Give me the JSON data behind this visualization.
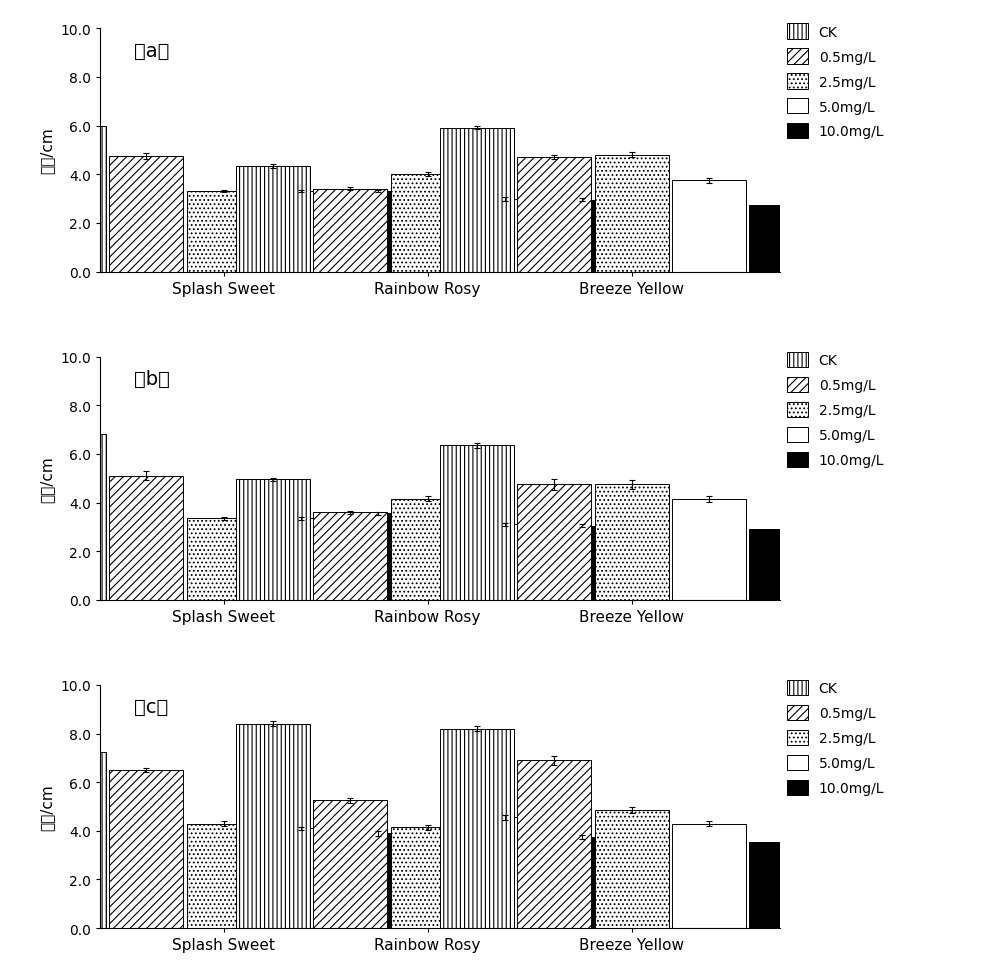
{
  "subplot_labels": [
    "（a）",
    "（b）",
    "（c）"
  ],
  "ylabel": "根长/cm",
  "groups": [
    "Splash Sweet",
    "Rainbow Rosy",
    "Breeze Yellow"
  ],
  "legend_labels": [
    "CK",
    "0.5mg/L",
    "2.5mg/L",
    "5.0mg/L",
    "10.0mg/L"
  ],
  "ylim": [
    0.0,
    10.0
  ],
  "yticks": [
    0.0,
    2.0,
    4.0,
    6.0,
    8.0,
    10.0
  ],
  "data": {
    "a": {
      "means": [
        [
          6.0,
          4.75,
          3.3,
          3.3,
          3.3
        ],
        [
          4.35,
          3.4,
          4.0,
          3.0,
          2.95
        ],
        [
          5.92,
          4.72,
          4.8,
          3.75,
          2.75
        ]
      ],
      "errors": [
        [
          0.05,
          0.12,
          0.05,
          0.05,
          0.04
        ],
        [
          0.08,
          0.06,
          0.08,
          0.08,
          0.06
        ],
        [
          0.05,
          0.08,
          0.1,
          0.1,
          0.07
        ]
      ]
    },
    "b": {
      "means": [
        [
          6.8,
          5.1,
          3.35,
          3.35,
          3.55
        ],
        [
          4.95,
          3.6,
          4.15,
          3.1,
          3.05
        ],
        [
          6.35,
          4.75,
          4.75,
          4.15,
          2.9
        ]
      ],
      "errors": [
        [
          0.07,
          0.18,
          0.06,
          0.06,
          0.07
        ],
        [
          0.07,
          0.06,
          0.1,
          0.06,
          0.06
        ],
        [
          0.1,
          0.22,
          0.18,
          0.12,
          0.07
        ]
      ]
    },
    "c": {
      "means": [
        [
          7.25,
          6.5,
          4.3,
          4.1,
          3.9
        ],
        [
          8.4,
          5.25,
          4.15,
          4.55,
          3.75
        ],
        [
          8.2,
          6.9,
          4.85,
          4.3,
          3.55
        ]
      ],
      "errors": [
        [
          0.1,
          0.1,
          0.1,
          0.07,
          0.1
        ],
        [
          0.1,
          0.1,
          0.1,
          0.12,
          0.08
        ],
        [
          0.1,
          0.18,
          0.12,
          0.1,
          0.07
        ]
      ]
    }
  },
  "hatch_styles": [
    "||||",
    "////",
    "....",
    "",
    ""
  ],
  "face_colors": [
    "#ffffff",
    "#ffffff",
    "#ffffff",
    "#ffffff",
    "#000000"
  ],
  "edge_color": "#000000",
  "background_color": "#ffffff",
  "figsize": [
    10.0,
    9.78
  ],
  "dpi": 100,
  "bar_width": 0.12,
  "group_centers": [
    0.22,
    0.55,
    0.88
  ]
}
